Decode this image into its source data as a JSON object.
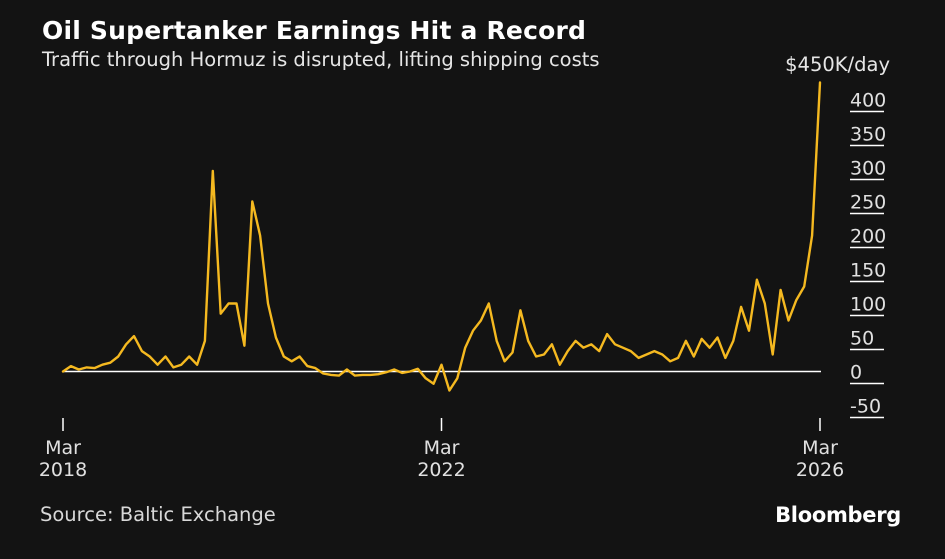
{
  "title": "Oil Supertanker Earnings Hit a Record",
  "subtitle": "Traffic through Hormuz is disrupted, lifting shipping costs",
  "source": "Source: Baltic Exchange",
  "brand": "Bloomberg",
  "colors": {
    "background": "#131313",
    "line": "#f5b920",
    "axis": "#ffffff",
    "text": "#e0e0e0"
  },
  "chart_data": {
    "type": "line",
    "title": "Oil Supertanker Earnings Hit a Record",
    "subtitle": "Traffic through Hormuz is disrupted, lifting shipping costs",
    "ylabel": "$450K/day",
    "ylim": [
      -50,
      450
    ],
    "y_ticks": [
      {
        "value": 400,
        "label": "400"
      },
      {
        "value": 350,
        "label": "350"
      },
      {
        "value": 300,
        "label": "300"
      },
      {
        "value": 250,
        "label": "250"
      },
      {
        "value": 200,
        "label": "200"
      },
      {
        "value": 150,
        "label": "150"
      },
      {
        "value": 100,
        "label": "100"
      },
      {
        "value": 50,
        "label": "50"
      },
      {
        "value": 0,
        "label": "0"
      },
      {
        "value": -50,
        "label": "-50"
      }
    ],
    "xlim": [
      "2018-03",
      "2026-03"
    ],
    "x_ticks": [
      {
        "value": "2018-03",
        "label_top": "Mar",
        "label_bottom": "2018"
      },
      {
        "value": "2022-03",
        "label_top": "Mar",
        "label_bottom": "2022"
      },
      {
        "value": "2026-03",
        "label_top": "Mar",
        "label_bottom": "2026"
      }
    ],
    "grid": false,
    "legend": "none",
    "series": [
      {
        "units": "thousand USD per day",
        "points": [
          [
            "2018-03",
            0
          ],
          [
            "2018-04",
            8
          ],
          [
            "2018-05",
            3
          ],
          [
            "2018-06",
            6
          ],
          [
            "2018-07",
            5
          ],
          [
            "2018-08",
            10
          ],
          [
            "2018-09",
            13
          ],
          [
            "2018-10",
            22
          ],
          [
            "2018-11",
            40
          ],
          [
            "2018-12",
            52
          ],
          [
            "2019-01",
            30
          ],
          [
            "2019-02",
            22
          ],
          [
            "2019-03",
            10
          ],
          [
            "2019-04",
            22
          ],
          [
            "2019-05",
            6
          ],
          [
            "2019-06",
            10
          ],
          [
            "2019-07",
            22
          ],
          [
            "2019-08",
            10
          ],
          [
            "2019-09",
            45
          ],
          [
            "2019-10",
            295
          ],
          [
            "2019-11",
            85
          ],
          [
            "2019-12",
            100
          ],
          [
            "2020-01",
            100
          ],
          [
            "2020-02",
            38
          ],
          [
            "2020-03",
            250
          ],
          [
            "2020-04",
            200
          ],
          [
            "2020-05",
            100
          ],
          [
            "2020-06",
            50
          ],
          [
            "2020-07",
            22
          ],
          [
            "2020-08",
            15
          ],
          [
            "2020-09",
            22
          ],
          [
            "2020-10",
            8
          ],
          [
            "2020-11",
            5
          ],
          [
            "2020-12",
            -3
          ],
          [
            "2021-01",
            -5
          ],
          [
            "2021-02",
            -6
          ],
          [
            "2021-03",
            3
          ],
          [
            "2021-04",
            -6
          ],
          [
            "2021-05",
            -5
          ],
          [
            "2021-06",
            -5
          ],
          [
            "2021-07",
            -4
          ],
          [
            "2021-08",
            -1
          ],
          [
            "2021-09",
            3
          ],
          [
            "2021-10",
            -2
          ],
          [
            "2021-11",
            0
          ],
          [
            "2021-12",
            4
          ],
          [
            "2022-01",
            -10
          ],
          [
            "2022-02",
            -18
          ],
          [
            "2022-03",
            10
          ],
          [
            "2022-04",
            -28
          ],
          [
            "2022-05",
            -10
          ],
          [
            "2022-06",
            35
          ],
          [
            "2022-07",
            60
          ],
          [
            "2022-08",
            75
          ],
          [
            "2022-09",
            100
          ],
          [
            "2022-10",
            45
          ],
          [
            "2022-11",
            15
          ],
          [
            "2022-12",
            28
          ],
          [
            "2023-01",
            90
          ],
          [
            "2023-02",
            45
          ],
          [
            "2023-03",
            22
          ],
          [
            "2023-04",
            25
          ],
          [
            "2023-05",
            40
          ],
          [
            "2023-06",
            10
          ],
          [
            "2023-07",
            30
          ],
          [
            "2023-08",
            45
          ],
          [
            "2023-09",
            35
          ],
          [
            "2023-10",
            40
          ],
          [
            "2023-11",
            30
          ],
          [
            "2023-12",
            55
          ],
          [
            "2024-01",
            40
          ],
          [
            "2024-02",
            35
          ],
          [
            "2024-03",
            30
          ],
          [
            "2024-04",
            20
          ],
          [
            "2024-05",
            25
          ],
          [
            "2024-06",
            30
          ],
          [
            "2024-07",
            25
          ],
          [
            "2024-08",
            15
          ],
          [
            "2024-09",
            20
          ],
          [
            "2024-10",
            45
          ],
          [
            "2024-11",
            22
          ],
          [
            "2024-12",
            48
          ],
          [
            "2025-01",
            35
          ],
          [
            "2025-02",
            50
          ],
          [
            "2025-03",
            20
          ],
          [
            "2025-04",
            45
          ],
          [
            "2025-05",
            95
          ],
          [
            "2025-06",
            60
          ],
          [
            "2025-07",
            135
          ],
          [
            "2025-08",
            100
          ],
          [
            "2025-09",
            25
          ],
          [
            "2025-10",
            120
          ],
          [
            "2025-11",
            75
          ],
          [
            "2025-12",
            105
          ],
          [
            "2026-01",
            125
          ],
          [
            "2026-02",
            200
          ],
          [
            "2026-03",
            425
          ]
        ]
      }
    ]
  }
}
